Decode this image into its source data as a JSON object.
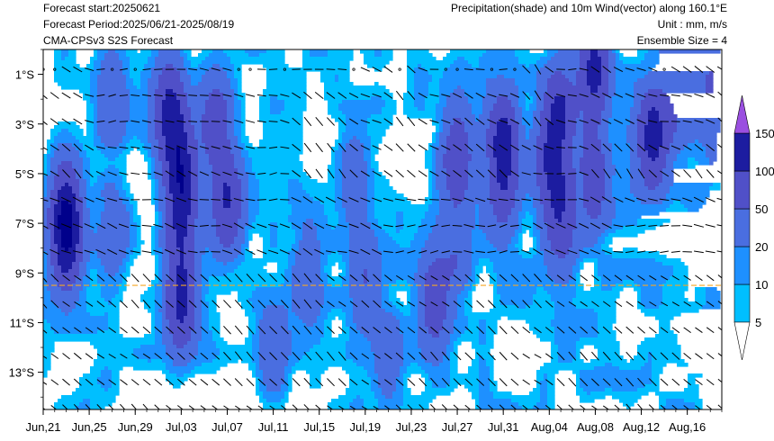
{
  "header": {
    "forecast_start": "Forecast start:20250621",
    "forecast_period": "Forecast Period:2025/06/21-2025/08/19",
    "model": "CMA-CPSv3 S2S Forecast",
    "title": "Precipitation(shade) and 10m Wind(vector) along 160.1°E",
    "unit": "Unit : mm, m/s",
    "ensemble": "Ensemble Size = 4"
  },
  "chart_data": {
    "type": "heatmap",
    "title": "Precipitation(shade) and 10m Wind(vector) along 160.1°E",
    "x_tick_labels": [
      "Jun,21",
      "Jun,25",
      "Jun,29",
      "Jul,03",
      "Jul,07",
      "Jul,11",
      "Jul,15",
      "Jul,19",
      "Jul,23",
      "Jul,27",
      "Jul,31",
      "Aug,04",
      "Aug,08",
      "Aug,12",
      "Aug,16"
    ],
    "x_range": [
      "2025-06-21",
      "2025-08-19"
    ],
    "y_tick_labels": [
      "1°S",
      "3°S",
      "5°S",
      "7°S",
      "9°S",
      "11°S",
      "13°S"
    ],
    "y_range_deg_south": [
      0,
      14.5
    ],
    "reference_line_lat_s": 9.5,
    "reference_line_color": "#f5a623",
    "colorbar": {
      "levels": [
        5,
        10,
        20,
        50,
        100,
        150
      ],
      "colors": [
        "#00bfff",
        "#1e90ff",
        "#4a6ee0",
        "#5050c8",
        "#1c1ca0",
        "#00008b",
        "#9a4fe0"
      ],
      "extend": "both"
    },
    "precipitation_peaks_mm": [
      {
        "date": "2025-06-23",
        "lat_s": 6.5,
        "value": 120
      },
      {
        "date": "2025-06-23",
        "lat_s": 8.0,
        "value": 90
      },
      {
        "date": "2025-06-27",
        "lat_s": 2.0,
        "value": 45
      },
      {
        "date": "2025-06-27",
        "lat_s": 7.5,
        "value": 40
      },
      {
        "date": "2025-07-02",
        "lat_s": 2.5,
        "value": 110
      },
      {
        "date": "2025-07-03",
        "lat_s": 4.5,
        "value": 100
      },
      {
        "date": "2025-07-03",
        "lat_s": 6.8,
        "value": 100
      },
      {
        "date": "2025-07-03",
        "lat_s": 10.2,
        "value": 110
      },
      {
        "date": "2025-07-06",
        "lat_s": 3.0,
        "value": 80
      },
      {
        "date": "2025-07-07",
        "lat_s": 6.2,
        "value": 95
      },
      {
        "date": "2025-07-11",
        "lat_s": 12.0,
        "value": 40
      },
      {
        "date": "2025-07-14",
        "lat_s": 9.0,
        "value": 40
      },
      {
        "date": "2025-07-18",
        "lat_s": 5.0,
        "value": 35
      },
      {
        "date": "2025-07-19",
        "lat_s": 9.2,
        "value": 45
      },
      {
        "date": "2025-07-21",
        "lat_s": 12.5,
        "value": 35
      },
      {
        "date": "2025-07-25",
        "lat_s": 10.2,
        "value": 80
      },
      {
        "date": "2025-07-27",
        "lat_s": 4.2,
        "value": 85
      },
      {
        "date": "2025-07-27",
        "lat_s": 8.0,
        "value": 40
      },
      {
        "date": "2025-07-31",
        "lat_s": 3.5,
        "value": 110
      },
      {
        "date": "2025-07-31",
        "lat_s": 6.0,
        "value": 60
      },
      {
        "date": "2025-08-04",
        "lat_s": 4.2,
        "value": 80
      },
      {
        "date": "2025-08-05",
        "lat_s": 2.5,
        "value": 90
      },
      {
        "date": "2025-08-05",
        "lat_s": 6.6,
        "value": 95
      },
      {
        "date": "2025-08-08",
        "lat_s": 0.8,
        "value": 115
      },
      {
        "date": "2025-08-08",
        "lat_s": 5.2,
        "value": 70
      },
      {
        "date": "2025-08-13",
        "lat_s": 3.5,
        "value": 120
      },
      {
        "date": "2025-08-15",
        "lat_s": 2.0,
        "value": 40
      },
      {
        "date": "2025-08-18",
        "lat_s": 1.5,
        "value": 50
      }
    ]
  }
}
